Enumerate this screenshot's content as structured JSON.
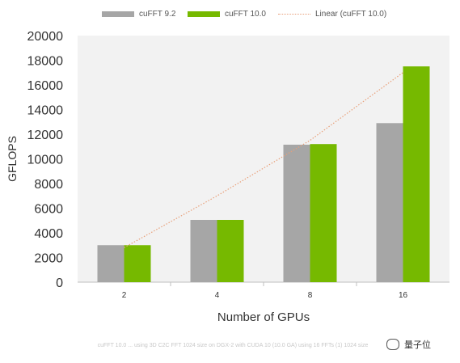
{
  "chart_data": {
    "type": "bar",
    "categories": [
      "2",
      "4",
      "8",
      "16"
    ],
    "series": [
      {
        "name": "cuFFT 9.2",
        "values": [
          3000,
          5050,
          11150,
          12900
        ],
        "color": "#a6a6a6"
      },
      {
        "name": "cuFFT 10.0",
        "values": [
          3000,
          5050,
          11200,
          17500
        ],
        "color": "#76b900"
      }
    ],
    "line_series": {
      "name": "Linear (cuFFT 10.0)",
      "values": [
        2800,
        7000,
        11500,
        17000
      ],
      "color": "#e8a07a",
      "style": "dotted"
    },
    "xlabel": "Number of GPUs",
    "ylabel": "GFLOPS",
    "ylim": [
      0,
      20000
    ],
    "yticks": [
      0,
      2000,
      4000,
      6000,
      8000,
      10000,
      12000,
      14000,
      16000,
      18000,
      20000
    ],
    "legend": "top",
    "grid": false,
    "plot_background": "#f2f2f2"
  },
  "footnote": "cuFFT 10.0 ... using 3D C2C FFT 1024 size on DGX-2 with CUDA 10 (10.0 GA) using 16 FFTs (1) 1024 size",
  "watermark": {
    "text": "量子位",
    "icon": "wechat-icon"
  }
}
